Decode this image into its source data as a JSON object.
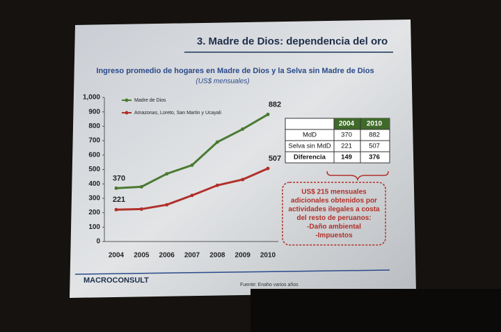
{
  "slide": {
    "title": "3. Madre de Dios: dependencia del oro",
    "logo": "MACROCONSULT",
    "source": "Fuente: Enaho varios años"
  },
  "chart_data": {
    "type": "line",
    "title": "Ingreso promedio de hogares en Madre de Dios y la Selva sin Madre de Dios",
    "subtitle": "(US$ mensuales)",
    "categories": [
      "2004",
      "2005",
      "2006",
      "2007",
      "2008",
      "2009",
      "2010"
    ],
    "series": [
      {
        "name": "Madre de Dios",
        "color": "#4a7a32",
        "values": [
          370,
          380,
          470,
          530,
          690,
          780,
          882
        ]
      },
      {
        "name": "Amazonas, Loreto, San Martin y Ucayali",
        "color": "#b0302a",
        "values": [
          221,
          225,
          255,
          320,
          390,
          430,
          507
        ]
      }
    ],
    "ylim": [
      0,
      1000
    ],
    "yticks": [
      0,
      100,
      200,
      300,
      400,
      500,
      600,
      700,
      800,
      900,
      {
        "value": 1000,
        "label": "1,000"
      }
    ],
    "legend": "upper left"
  },
  "table": {
    "header": [
      "2004",
      "2010"
    ],
    "rows": [
      [
        "MdD",
        370,
        882
      ],
      [
        "Selva sin MdD",
        221,
        507
      ],
      [
        "Diferencia",
        149,
        376
      ]
    ]
  },
  "note": [
    "US$ 215 mensuales",
    "adicionales obtenidos por",
    "actividades ilegales a costa",
    "del resto de peruanos:",
    "-Daño ambiental",
    "-Impuestos"
  ]
}
